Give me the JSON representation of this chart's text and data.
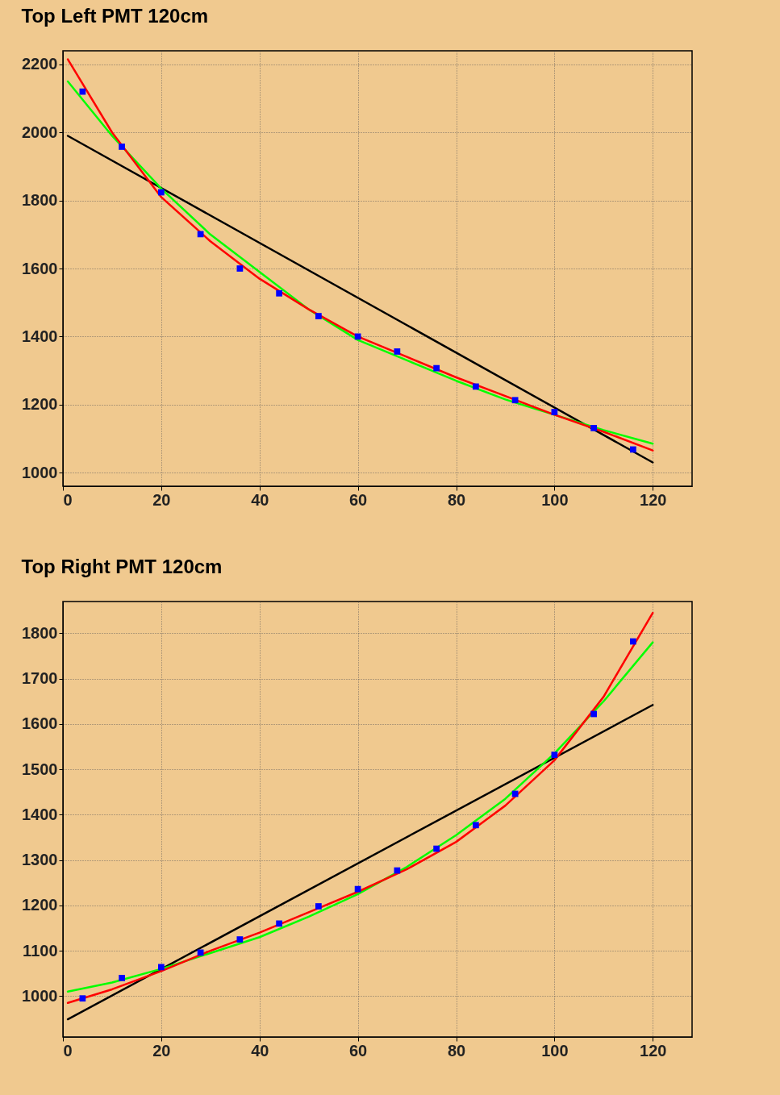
{
  "chart_data": [
    {
      "type": "scatter",
      "title": "Top Left PMT 120cm",
      "xlim": [
        0,
        128
      ],
      "ylim": [
        960,
        2240
      ],
      "xticks": [
        0,
        20,
        40,
        60,
        80,
        100,
        120
      ],
      "yticks": [
        1000,
        1200,
        1400,
        1600,
        1800,
        2000,
        2200
      ],
      "grid": true,
      "series": [
        {
          "type": "line",
          "color": "#000000",
          "x": [
            1,
            120
          ],
          "values": [
            1990,
            1030
          ]
        },
        {
          "type": "line",
          "color": "#00ff00",
          "x": [
            1,
            10,
            20,
            30,
            40,
            50,
            60,
            70,
            80,
            90,
            100,
            110,
            120
          ],
          "values": [
            2150,
            1990,
            1835,
            1700,
            1590,
            1480,
            1390,
            1330,
            1270,
            1215,
            1170,
            1125,
            1085
          ]
        },
        {
          "type": "line",
          "color": "#ff0000",
          "x": [
            1,
            10,
            20,
            30,
            40,
            50,
            60,
            70,
            80,
            90,
            100,
            110,
            120
          ],
          "values": [
            2215,
            2000,
            1810,
            1680,
            1570,
            1480,
            1400,
            1340,
            1280,
            1225,
            1170,
            1120,
            1065
          ]
        },
        {
          "type": "scatter",
          "marker": "square",
          "color": "#0000ff",
          "x": [
            4,
            12,
            20,
            28,
            36,
            44,
            52,
            60,
            68,
            76,
            84,
            92,
            100,
            108,
            116
          ],
          "values": [
            2120,
            1958,
            1824,
            1701,
            1600,
            1527,
            1460,
            1400,
            1356,
            1307,
            1253,
            1213,
            1178,
            1131,
            1068
          ]
        }
      ]
    },
    {
      "type": "scatter",
      "title": "Top Right PMT 120cm",
      "xlim": [
        0,
        128
      ],
      "ylim": [
        910,
        1870
      ],
      "xticks": [
        0,
        20,
        40,
        60,
        80,
        100,
        120
      ],
      "yticks": [
        1000,
        1100,
        1200,
        1300,
        1400,
        1500,
        1600,
        1700,
        1800
      ],
      "grid": true,
      "series": [
        {
          "type": "line",
          "color": "#000000",
          "x": [
            1,
            120
          ],
          "values": [
            949,
            1642
          ]
        },
        {
          "type": "line",
          "color": "#00ff00",
          "x": [
            1,
            10,
            20,
            30,
            40,
            50,
            60,
            70,
            80,
            90,
            100,
            110,
            120
          ],
          "values": [
            1010,
            1030,
            1060,
            1095,
            1130,
            1175,
            1225,
            1285,
            1355,
            1435,
            1535,
            1650,
            1780
          ]
        },
        {
          "type": "line",
          "color": "#ff0000",
          "x": [
            1,
            10,
            20,
            30,
            40,
            50,
            60,
            70,
            80,
            90,
            100,
            110,
            120
          ],
          "values": [
            985,
            1015,
            1055,
            1100,
            1140,
            1185,
            1230,
            1280,
            1340,
            1420,
            1520,
            1660,
            1845
          ]
        },
        {
          "type": "scatter",
          "marker": "square",
          "color": "#0000ff",
          "x": [
            4,
            12,
            20,
            28,
            36,
            44,
            52,
            60,
            68,
            76,
            84,
            92,
            100,
            108,
            116
          ],
          "values": [
            995,
            1040,
            1064,
            1096,
            1125,
            1160,
            1198,
            1236,
            1277,
            1325,
            1377,
            1446,
            1532,
            1622,
            1782
          ]
        }
      ]
    }
  ]
}
